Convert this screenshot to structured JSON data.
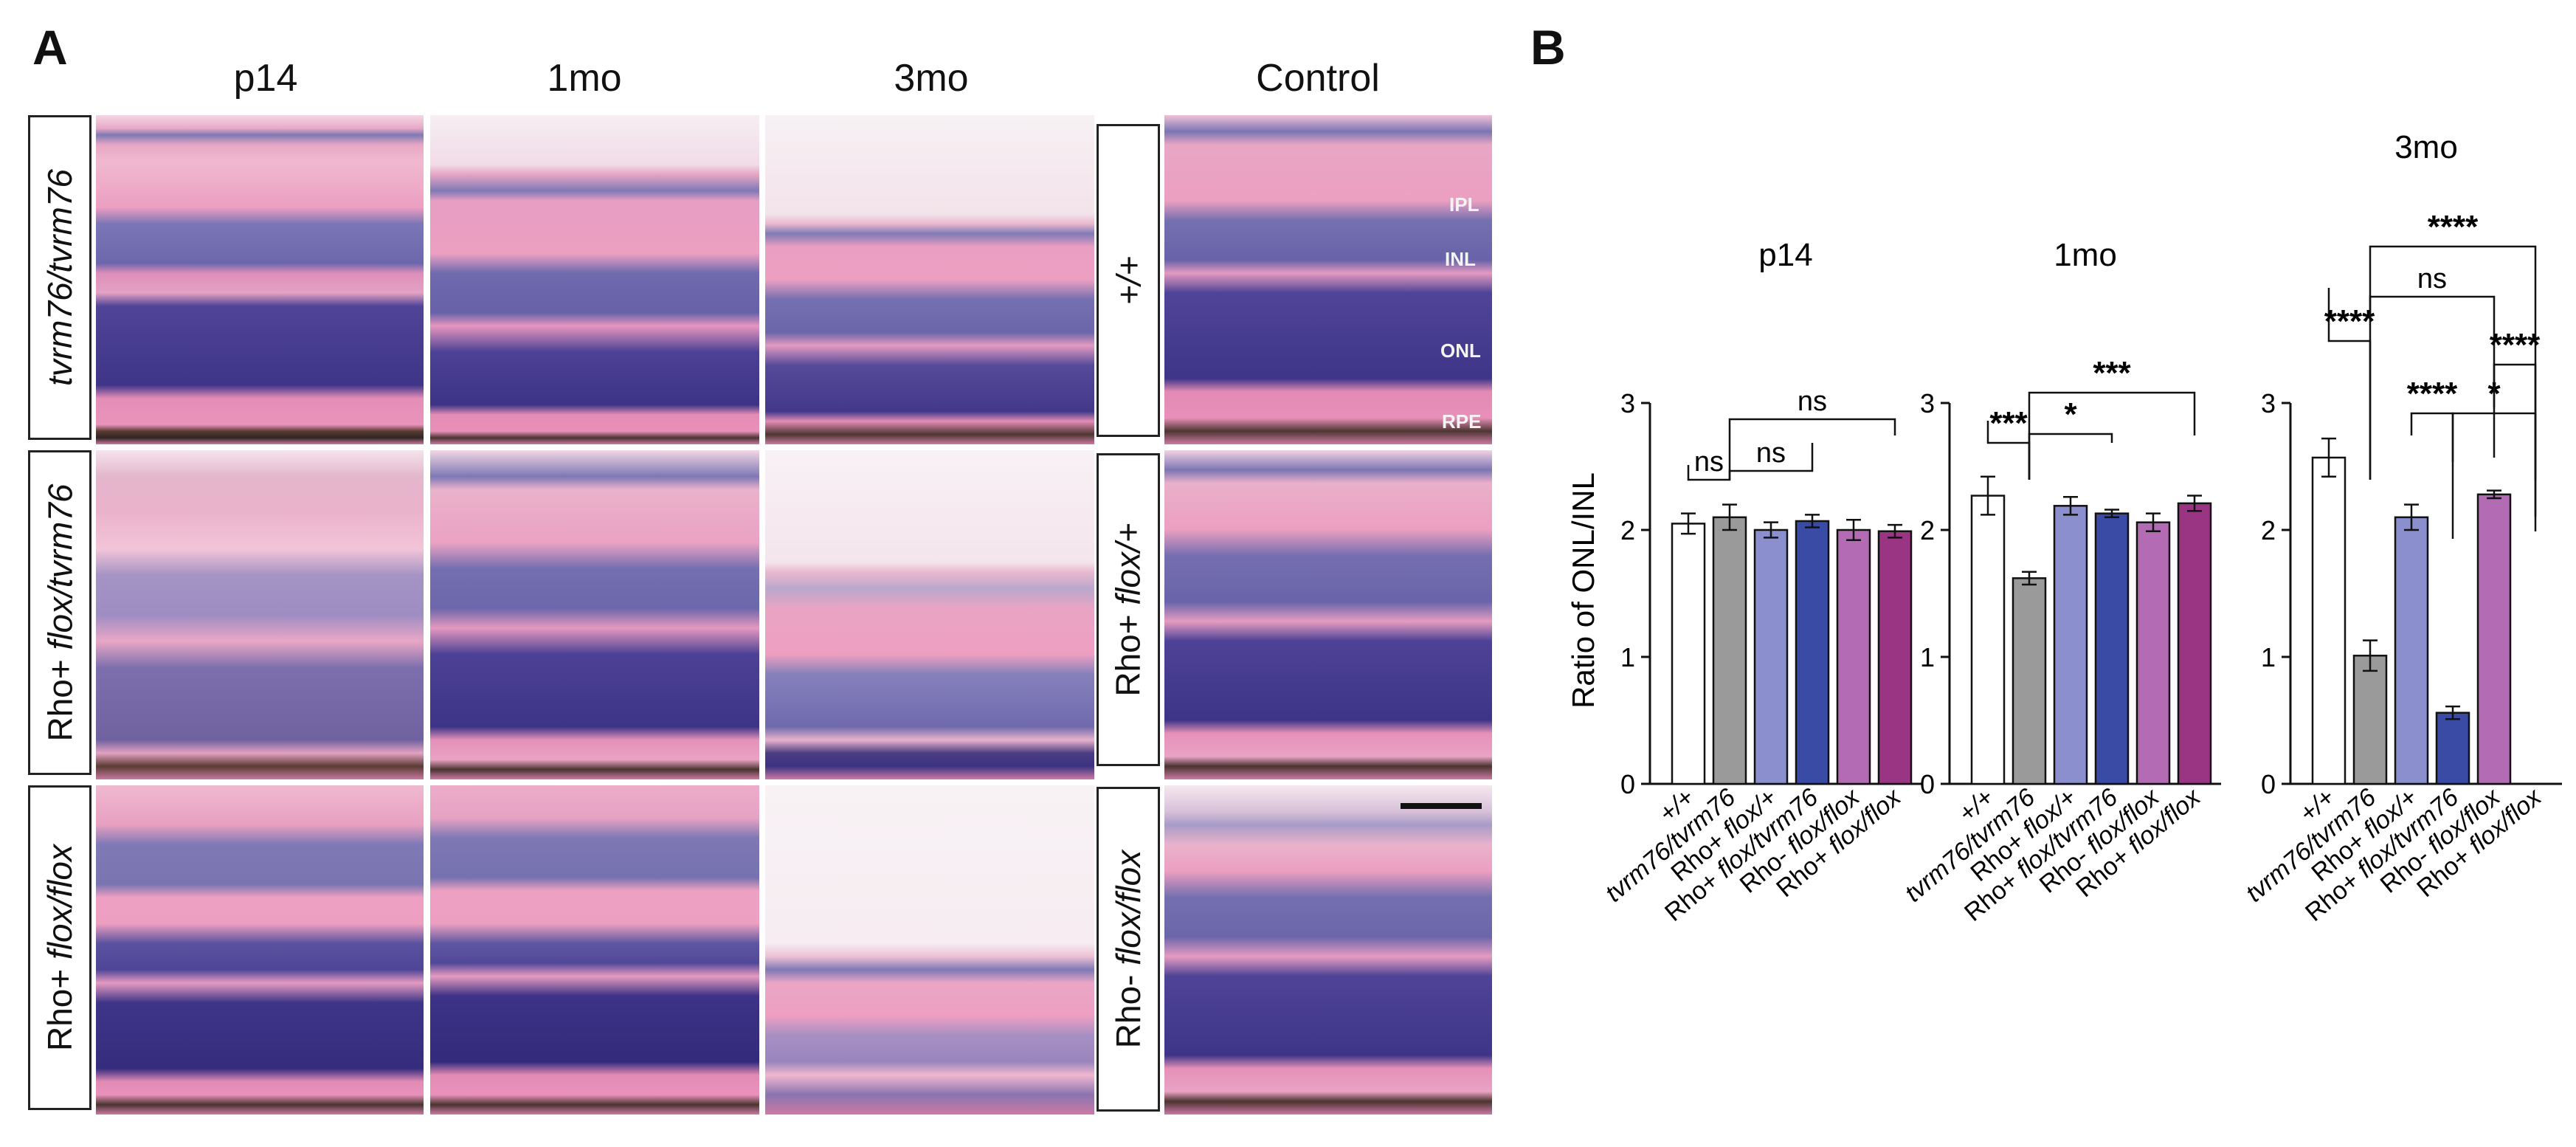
{
  "panel_a": {
    "letter": "A",
    "columns": [
      "p14",
      "1mo",
      "3mo",
      "Control"
    ],
    "rows": [
      {
        "label_prefix": "",
        "label_italic": "tvrm76/tvrm76"
      },
      {
        "label_prefix": "Rho+ ",
        "label_italic": "flox/tvrm76"
      },
      {
        "label_prefix": "Rho+ ",
        "label_italic": "flox/flox"
      }
    ],
    "control_rows": [
      {
        "label_prefix": "",
        "label_italic": "+/+"
      },
      {
        "label_prefix": "Rho+ ",
        "label_italic": "flox/+"
      },
      {
        "label_prefix": "Rho- ",
        "label_italic": "flox/flox"
      }
    ],
    "layer_labels": [
      "IPL",
      "INL",
      "ONL",
      "RPE"
    ]
  },
  "panel_b": {
    "letter": "B",
    "ylabel": "Ratio of ONL/INL",
    "categories": [
      {
        "prefix": "",
        "italic": "+/+"
      },
      {
        "prefix": "",
        "italic": "tvrm76/tvrm76"
      },
      {
        "prefix": "Rho+ ",
        "italic": "flox/+"
      },
      {
        "prefix": "Rho+ ",
        "italic": "flox/tvrm76"
      },
      {
        "prefix": "Rho- ",
        "italic": "flox/flox"
      },
      {
        "prefix": "Rho+ ",
        "italic": "flox/flox"
      }
    ],
    "colors": [
      "#ffffff",
      "#9a9a9a",
      "#8b8fce",
      "#3a4ba5",
      "#b36cb3",
      "#9a3584"
    ]
  },
  "chart_data": [
    {
      "type": "bar",
      "title": "p14",
      "ylabel": "Ratio of ONL/INL",
      "ylim": [
        0,
        3
      ],
      "yticks": [
        "0",
        "1",
        "2",
        "3"
      ],
      "categories": [
        "+/+",
        "tvrm76/tvrm76",
        "Rho+ flox/+",
        "Rho+ flox/tvrm76",
        "Rho- flox/flox",
        "Rho+ flox/flox"
      ],
      "values": [
        2.05,
        2.1,
        2.0,
        2.07,
        2.0,
        1.99
      ],
      "errors": [
        0.08,
        0.1,
        0.06,
        0.05,
        0.08,
        0.05
      ],
      "significance": [
        {
          "from": 0,
          "to": 1,
          "label": "ns"
        },
        {
          "from": 1,
          "to": 3,
          "label": "ns"
        },
        {
          "from": 1,
          "to": 5,
          "label": "ns"
        }
      ]
    },
    {
      "type": "bar",
      "title": "1mo",
      "ylim": [
        0,
        3
      ],
      "yticks": [
        "0",
        "1",
        "2",
        "3"
      ],
      "categories": [
        "+/+",
        "tvrm76/tvrm76",
        "Rho+ flox/+",
        "Rho+ flox/tvrm76",
        "Rho- flox/flox",
        "Rho+ flox/flox"
      ],
      "values": [
        2.27,
        1.62,
        2.19,
        2.13,
        2.06,
        2.21
      ],
      "errors": [
        0.15,
        0.05,
        0.07,
        0.03,
        0.07,
        0.06
      ],
      "significance": [
        {
          "from": 0,
          "to": 1,
          "label": "***"
        },
        {
          "from": 1,
          "to": 3,
          "label": "*"
        },
        {
          "from": 1,
          "to": 5,
          "label": "***"
        }
      ]
    },
    {
      "type": "bar",
      "title": "3mo",
      "ylim": [
        0,
        3
      ],
      "yticks": [
        "0",
        "1",
        "2",
        "3"
      ],
      "categories": [
        "+/+",
        "tvrm76/tvrm76",
        "Rho+ flox/+",
        "Rho+ flox/tvrm76",
        "Rho- flox/flox",
        "Rho+ flox/flox"
      ],
      "values": [
        2.57,
        1.01,
        2.1,
        0.56,
        2.28,
        0.0
      ],
      "errors": [
        0.15,
        0.12,
        0.1,
        0.05,
        0.03,
        0.0
      ],
      "significance": [
        {
          "from": 0,
          "to": 1,
          "label": "****"
        },
        {
          "from": 1,
          "to": 5,
          "label": "****"
        },
        {
          "from": 1,
          "to": 4,
          "label": "ns"
        },
        {
          "from": 2,
          "to": 3,
          "label": "****"
        },
        {
          "from": 3,
          "to": 5,
          "label": "*"
        },
        {
          "from": 4,
          "to": 5,
          "label": "****"
        }
      ]
    }
  ]
}
